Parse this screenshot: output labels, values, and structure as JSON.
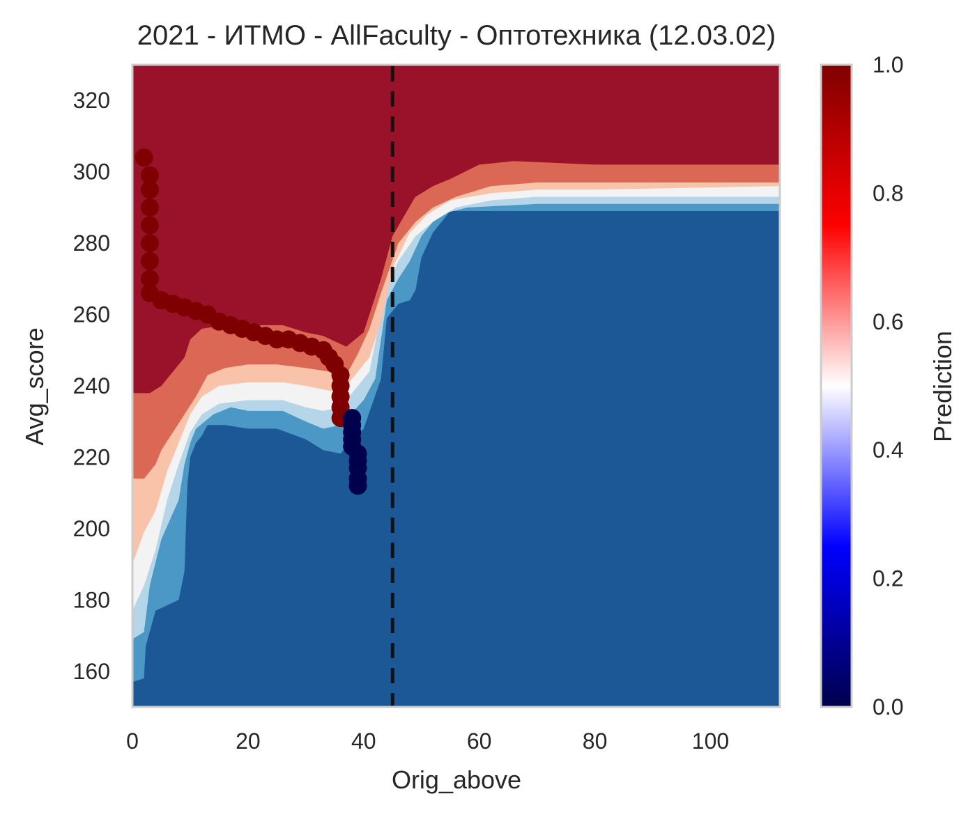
{
  "chart_data": {
    "type": "heatmap",
    "title": "2021 - ИТМО - AllFaculty - Оптотехника (12.03.02)",
    "xlabel": "Orig_above",
    "ylabel": "Avg_score",
    "xlim": [
      0,
      112
    ],
    "ylim": [
      150,
      330
    ],
    "xticks": [
      0,
      20,
      40,
      60,
      80,
      100
    ],
    "xtick_labels": [
      "0",
      "20",
      "40",
      "60",
      "80",
      "100"
    ],
    "yticks": [
      160,
      180,
      200,
      220,
      240,
      260,
      280,
      300,
      320
    ],
    "ytick_labels": [
      "160",
      "180",
      "200",
      "220",
      "240",
      "260",
      "280",
      "300",
      "320"
    ],
    "grid": false,
    "vline_x": 45,
    "vline_style": "dashed",
    "colorbar": {
      "label": "Prediction",
      "range": [
        0,
        1
      ],
      "ticks": [
        0.0,
        0.2,
        0.4,
        0.6,
        0.8,
        1.0
      ],
      "tick_labels": [
        "0.0",
        "0.2",
        "0.4",
        "0.6",
        "0.8",
        "1.0"
      ],
      "colormap": "seismic",
      "stops": [
        "#00004c",
        "#0000ff",
        "#ffffff",
        "#ff0000",
        "#800000"
      ]
    },
    "contour_levels": [
      {
        "level": "0.0-0.1",
        "color": "#1c5796"
      },
      {
        "level": "0.1-0.3",
        "color": "#4b97c5"
      },
      {
        "level": "0.3-0.4",
        "color": "#b5d5e8"
      },
      {
        "level": "0.4-0.5",
        "color": "#f3f3f3"
      },
      {
        "level": "0.5-0.6",
        "color": "#f9c3a9"
      },
      {
        "level": "0.6-0.8",
        "color": "#db6855"
      },
      {
        "level": "0.8-1.0",
        "color": "#9a1229"
      }
    ],
    "contour_boundaries": {
      "b0_1": [
        [
          0,
          157
        ],
        [
          2,
          158
        ],
        [
          2.3,
          167
        ],
        [
          4,
          177
        ],
        [
          8,
          180
        ],
        [
          9,
          188
        ],
        [
          9.5,
          212
        ],
        [
          10,
          220
        ],
        [
          11,
          224
        ],
        [
          12,
          226
        ],
        [
          13,
          229
        ],
        [
          16,
          229
        ],
        [
          20,
          228
        ],
        [
          25,
          228
        ],
        [
          30,
          225
        ],
        [
          33,
          222
        ],
        [
          36,
          221
        ],
        [
          40,
          228
        ],
        [
          43,
          242
        ],
        [
          44,
          259
        ],
        [
          46,
          263
        ],
        [
          48,
          264
        ],
        [
          49,
          267
        ],
        [
          50,
          276
        ],
        [
          52,
          283
        ],
        [
          55,
          289
        ],
        [
          60,
          289
        ],
        [
          70,
          289
        ],
        [
          80,
          289
        ],
        [
          90,
          289
        ],
        [
          112,
          289
        ]
      ],
      "b1_3": [
        [
          0,
          169
        ],
        [
          2,
          171
        ],
        [
          3,
          184
        ],
        [
          5,
          197
        ],
        [
          8,
          208
        ],
        [
          9,
          218
        ],
        [
          10,
          224
        ],
        [
          11,
          228
        ],
        [
          14,
          232
        ],
        [
          17,
          234
        ],
        [
          20,
          233
        ],
        [
          26,
          233
        ],
        [
          30,
          230
        ],
        [
          33,
          228
        ],
        [
          36,
          229
        ],
        [
          40,
          236
        ],
        [
          42,
          242
        ],
        [
          44,
          264
        ],
        [
          46,
          270
        ],
        [
          48,
          275
        ],
        [
          50,
          282
        ],
        [
          53,
          288
        ],
        [
          58,
          290
        ],
        [
          70,
          291
        ],
        [
          80,
          291
        ],
        [
          112,
          291
        ]
      ],
      "b3_4": [
        [
          0,
          177
        ],
        [
          2,
          184
        ],
        [
          4,
          194
        ],
        [
          6,
          208
        ],
        [
          8,
          218
        ],
        [
          10,
          227
        ],
        [
          12,
          232
        ],
        [
          15,
          235
        ],
        [
          20,
          236
        ],
        [
          26,
          236
        ],
        [
          30,
          234
        ],
        [
          33,
          233
        ],
        [
          36,
          234
        ],
        [
          39,
          240
        ],
        [
          41,
          244
        ],
        [
          44,
          268
        ],
        [
          46,
          275
        ],
        [
          49,
          282
        ],
        [
          52,
          286
        ],
        [
          56,
          290
        ],
        [
          62,
          292
        ],
        [
          70,
          293
        ],
        [
          80,
          293
        ],
        [
          112,
          293
        ]
      ],
      "b4_5": [
        [
          0,
          190
        ],
        [
          2,
          199
        ],
        [
          4,
          205
        ],
        [
          6,
          216
        ],
        [
          8,
          224
        ],
        [
          10,
          232
        ],
        [
          12,
          237
        ],
        [
          15,
          240
        ],
        [
          20,
          241
        ],
        [
          26,
          241
        ],
        [
          30,
          240
        ],
        [
          33,
          239
        ],
        [
          36,
          238
        ],
        [
          38,
          242
        ],
        [
          41,
          248
        ],
        [
          43,
          258
        ],
        [
          45,
          273
        ],
        [
          48,
          283
        ],
        [
          51,
          288
        ],
        [
          55,
          292
        ],
        [
          62,
          294
        ],
        [
          70,
          295
        ],
        [
          80,
          295
        ],
        [
          112,
          296
        ]
      ],
      "b5_6": [
        [
          0,
          214
        ],
        [
          2,
          214
        ],
        [
          4,
          218
        ],
        [
          5,
          222
        ],
        [
          7,
          227
        ],
        [
          9,
          232
        ],
        [
          11,
          237
        ],
        [
          13,
          243
        ],
        [
          16,
          245
        ],
        [
          20,
          246
        ],
        [
          25,
          246
        ],
        [
          30,
          245
        ],
        [
          34,
          244
        ],
        [
          37,
          243
        ],
        [
          39,
          249
        ],
        [
          41,
          256
        ],
        [
          43,
          266
        ],
        [
          46,
          280
        ],
        [
          49,
          286
        ],
        [
          52,
          290
        ],
        [
          56,
          293
        ],
        [
          62,
          296
        ],
        [
          70,
          297
        ],
        [
          80,
          297
        ],
        [
          112,
          297
        ]
      ],
      "b6_8": [
        [
          0,
          238
        ],
        [
          3,
          238
        ],
        [
          5,
          240
        ],
        [
          7,
          244
        ],
        [
          9,
          248
        ],
        [
          10,
          253
        ],
        [
          12,
          256
        ],
        [
          16,
          257
        ],
        [
          20,
          257
        ],
        [
          26,
          257
        ],
        [
          30,
          255
        ],
        [
          33,
          254
        ],
        [
          37,
          251
        ],
        [
          40,
          255
        ],
        [
          43,
          270
        ],
        [
          46,
          288
        ],
        [
          49,
          293
        ],
        [
          52,
          296
        ],
        [
          55,
          298
        ],
        [
          60,
          302
        ],
        [
          66,
          303
        ],
        [
          80,
          302
        ],
        [
          112,
          302
        ]
      ],
      "b8_10": [
        [
          0,
          238
        ],
        [
          3,
          238
        ],
        [
          5,
          240
        ],
        [
          7,
          244
        ],
        [
          9,
          248
        ],
        [
          10,
          253
        ],
        [
          12,
          259
        ],
        [
          20,
          259
        ],
        [
          25,
          259
        ],
        [
          30,
          259
        ],
        [
          34,
          259
        ],
        [
          36,
          261
        ],
        [
          38,
          266
        ],
        [
          40,
          272
        ],
        [
          42,
          276
        ],
        [
          44,
          280
        ],
        [
          45,
          282
        ],
        [
          50,
          296
        ],
        [
          52,
          300
        ],
        [
          54,
          304
        ],
        [
          55,
          330
        ],
        [
          112,
          330
        ]
      ]
    },
    "series": [
      {
        "color": "#7f0000",
        "points": [
          [
            2,
            304
          ],
          [
            3,
            299
          ],
          [
            3,
            295
          ],
          [
            3,
            290
          ],
          [
            3,
            285
          ],
          [
            3,
            280
          ],
          [
            3,
            275
          ],
          [
            3,
            270
          ],
          [
            3,
            266
          ],
          [
            5,
            264
          ],
          [
            7,
            263
          ],
          [
            9,
            262
          ],
          [
            11,
            261
          ],
          [
            13,
            260
          ],
          [
            15,
            258
          ],
          [
            17,
            257
          ],
          [
            19,
            256
          ],
          [
            21,
            255
          ],
          [
            23,
            254
          ],
          [
            25,
            253
          ],
          [
            27,
            253
          ],
          [
            29,
            252
          ],
          [
            31,
            251
          ],
          [
            33,
            250
          ],
          [
            34,
            248
          ],
          [
            35,
            246
          ],
          [
            36,
            243
          ],
          [
            36,
            240
          ],
          [
            36,
            237
          ],
          [
            36,
            234
          ],
          [
            36,
            231
          ]
        ]
      },
      {
        "color": "#00004c",
        "points": [
          [
            38,
            231
          ],
          [
            38,
            229
          ],
          [
            38,
            227
          ],
          [
            38,
            225
          ],
          [
            38,
            223
          ],
          [
            39,
            221
          ],
          [
            39,
            219
          ],
          [
            39,
            217
          ],
          [
            39,
            214
          ],
          [
            39,
            212
          ]
        ]
      }
    ]
  }
}
